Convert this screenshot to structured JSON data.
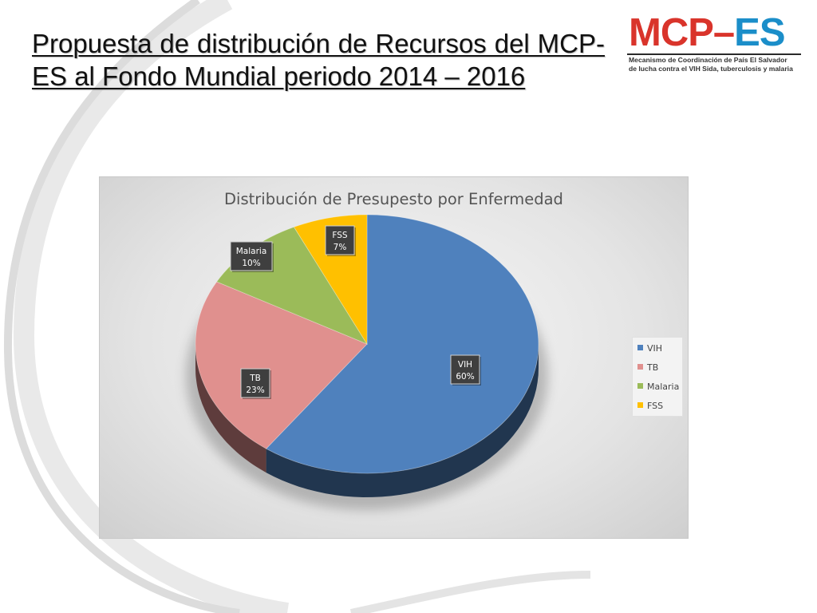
{
  "slide": {
    "title": "Propuesta de distribución de Recursos del MCP-ES al Fondo Mundial periodo 2014 – 2016"
  },
  "logo": {
    "mcp": "MCP",
    "dash": "–",
    "es": "ES",
    "subtitle_line1": "Mecanismo de Coordinación de País El Salvador",
    "subtitle_line2": "de lucha contra el VIH Sida, tuberculosis y malaria",
    "colors": {
      "red": "#d9342b",
      "blue": "#1b8ec9"
    }
  },
  "chart_data": {
    "type": "pie",
    "title": "Distribución de Presupesto por Enfermedad",
    "categories": [
      "VIH",
      "TB",
      "Malaria",
      "FSS"
    ],
    "values": [
      60,
      23,
      10,
      7
    ],
    "data_labels": [
      "60%",
      "23%",
      "10%",
      "7%"
    ],
    "colors": [
      "#4f81bd",
      "#e0908e",
      "#9bbb59",
      "#ffc000"
    ],
    "style": "3d",
    "legend_position": "right"
  }
}
